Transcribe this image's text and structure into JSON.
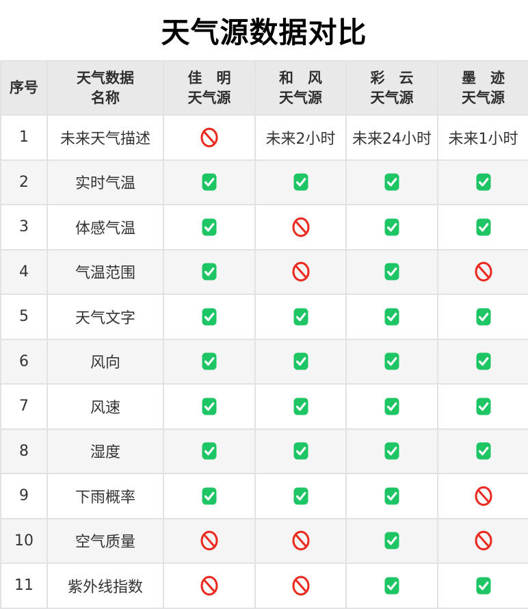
{
  "title": "天气源数据对比",
  "colors": {
    "check_green": "#1ec564",
    "ban_red": "#ec2b20",
    "header_bg": "#e9e9ea",
    "zebra_bg": "#f5f5f6",
    "border": "#e2e2e4"
  },
  "table": {
    "headers": [
      {
        "line1": "序号",
        "line2": ""
      },
      {
        "line1": "天气数据",
        "line2": "名称"
      },
      {
        "line1": "佳　明",
        "line2": "天气源"
      },
      {
        "line1": "和　风",
        "line2": "天气源"
      },
      {
        "line1": "彩　云",
        "line2": "天气源"
      },
      {
        "line1": "墨　迹",
        "line2": "天气源"
      }
    ],
    "icon_legend": {
      "check": "check-icon",
      "ban": "ban-icon"
    },
    "rows": [
      {
        "num": "1",
        "name": "未来天气描述",
        "values": [
          "ban",
          "未来2小时",
          "未来24小时",
          "未来1小时"
        ]
      },
      {
        "num": "2",
        "name": "实时气温",
        "values": [
          "check",
          "check",
          "check",
          "check"
        ]
      },
      {
        "num": "3",
        "name": "体感气温",
        "values": [
          "check",
          "ban",
          "check",
          "check"
        ]
      },
      {
        "num": "4",
        "name": "气温范围",
        "values": [
          "check",
          "ban",
          "check",
          "ban"
        ]
      },
      {
        "num": "5",
        "name": "天气文字",
        "values": [
          "check",
          "check",
          "check",
          "check"
        ]
      },
      {
        "num": "6",
        "name": "风向",
        "values": [
          "check",
          "check",
          "check",
          "check"
        ]
      },
      {
        "num": "7",
        "name": "风速",
        "values": [
          "check",
          "check",
          "check",
          "check"
        ]
      },
      {
        "num": "8",
        "name": "湿度",
        "values": [
          "check",
          "check",
          "check",
          "check"
        ]
      },
      {
        "num": "9",
        "name": "下雨概率",
        "values": [
          "check",
          "check",
          "check",
          "ban"
        ]
      },
      {
        "num": "10",
        "name": "空气质量",
        "values": [
          "ban",
          "ban",
          "check",
          "ban"
        ]
      },
      {
        "num": "11",
        "name": "紫外线指数",
        "values": [
          "ban",
          "ban",
          "check",
          "check"
        ]
      }
    ]
  }
}
